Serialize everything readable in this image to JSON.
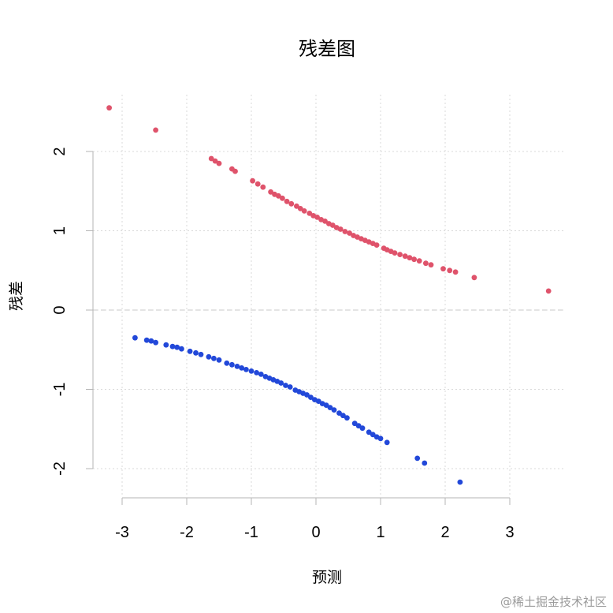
{
  "chart_data": {
    "type": "scatter",
    "title": "残差图",
    "xlabel": "预测",
    "ylabel": "残差",
    "xlim": [
      -3.3,
      3.8
    ],
    "ylim": [
      -2.35,
      2.75
    ],
    "x_ticks": [
      "-3",
      "-2",
      "-1",
      "0",
      "1",
      "2",
      "3"
    ],
    "y_ticks": [
      "-2",
      "-1",
      "0",
      "1",
      "2"
    ],
    "grid": true,
    "reference_line_y": 0,
    "series": [
      {
        "color": "#DF536B",
        "points": [
          [
            -3.2,
            2.55
          ],
          [
            -2.48,
            2.27
          ],
          [
            -1.62,
            1.91
          ],
          [
            -1.56,
            1.88
          ],
          [
            -1.5,
            1.85
          ],
          [
            -1.3,
            1.78
          ],
          [
            -1.25,
            1.75
          ],
          [
            -0.98,
            1.63
          ],
          [
            -0.9,
            1.59
          ],
          [
            -0.82,
            1.55
          ],
          [
            -0.7,
            1.49
          ],
          [
            -0.64,
            1.46
          ],
          [
            -0.58,
            1.44
          ],
          [
            -0.52,
            1.41
          ],
          [
            -0.45,
            1.37
          ],
          [
            -0.38,
            1.34
          ],
          [
            -0.3,
            1.31
          ],
          [
            -0.24,
            1.28
          ],
          [
            -0.18,
            1.25
          ],
          [
            -0.1,
            1.22
          ],
          [
            -0.04,
            1.19
          ],
          [
            0.02,
            1.17
          ],
          [
            0.08,
            1.14
          ],
          [
            0.14,
            1.12
          ],
          [
            0.2,
            1.09
          ],
          [
            0.26,
            1.07
          ],
          [
            0.32,
            1.04
          ],
          [
            0.38,
            1.02
          ],
          [
            0.45,
            0.99
          ],
          [
            0.52,
            0.97
          ],
          [
            0.58,
            0.94
          ],
          [
            0.64,
            0.92
          ],
          [
            0.7,
            0.9
          ],
          [
            0.76,
            0.88
          ],
          [
            0.82,
            0.86
          ],
          [
            0.88,
            0.84
          ],
          [
            0.94,
            0.82
          ],
          [
            1.05,
            0.78
          ],
          [
            1.1,
            0.76
          ],
          [
            1.16,
            0.74
          ],
          [
            1.22,
            0.72
          ],
          [
            1.3,
            0.7
          ],
          [
            1.38,
            0.68
          ],
          [
            1.45,
            0.66
          ],
          [
            1.52,
            0.64
          ],
          [
            1.6,
            0.62
          ],
          [
            1.7,
            0.59
          ],
          [
            1.78,
            0.57
          ],
          [
            1.97,
            0.52
          ],
          [
            2.07,
            0.5
          ],
          [
            2.16,
            0.48
          ],
          [
            2.45,
            0.41
          ],
          [
            3.6,
            0.24
          ]
        ]
      },
      {
        "color": "#2248D9",
        "points": [
          [
            -2.8,
            -0.35
          ],
          [
            -2.62,
            -0.38
          ],
          [
            -2.55,
            -0.39
          ],
          [
            -2.48,
            -0.41
          ],
          [
            -2.32,
            -0.44
          ],
          [
            -2.22,
            -0.46
          ],
          [
            -2.15,
            -0.47
          ],
          [
            -2.08,
            -0.49
          ],
          [
            -1.95,
            -0.52
          ],
          [
            -1.86,
            -0.54
          ],
          [
            -1.78,
            -0.56
          ],
          [
            -1.66,
            -0.59
          ],
          [
            -1.58,
            -0.61
          ],
          [
            -1.5,
            -0.63
          ],
          [
            -1.38,
            -0.67
          ],
          [
            -1.3,
            -0.69
          ],
          [
            -1.22,
            -0.71
          ],
          [
            -1.15,
            -0.73
          ],
          [
            -1.08,
            -0.75
          ],
          [
            -1.0,
            -0.77
          ],
          [
            -0.92,
            -0.79
          ],
          [
            -0.85,
            -0.81
          ],
          [
            -0.78,
            -0.84
          ],
          [
            -0.72,
            -0.86
          ],
          [
            -0.66,
            -0.88
          ],
          [
            -0.6,
            -0.9
          ],
          [
            -0.54,
            -0.92
          ],
          [
            -0.47,
            -0.95
          ],
          [
            -0.4,
            -0.97
          ],
          [
            -0.32,
            -1.01
          ],
          [
            -0.26,
            -1.03
          ],
          [
            -0.2,
            -1.05
          ],
          [
            -0.14,
            -1.07
          ],
          [
            -0.08,
            -1.1
          ],
          [
            -0.02,
            -1.13
          ],
          [
            0.04,
            -1.15
          ],
          [
            0.1,
            -1.18
          ],
          [
            0.16,
            -1.2
          ],
          [
            0.22,
            -1.23
          ],
          [
            0.28,
            -1.26
          ],
          [
            0.36,
            -1.3
          ],
          [
            0.42,
            -1.33
          ],
          [
            0.48,
            -1.36
          ],
          [
            0.6,
            -1.43
          ],
          [
            0.66,
            -1.46
          ],
          [
            0.72,
            -1.49
          ],
          [
            0.82,
            -1.54
          ],
          [
            0.88,
            -1.57
          ],
          [
            0.94,
            -1.6
          ],
          [
            1.0,
            -1.62
          ],
          [
            1.1,
            -1.67
          ],
          [
            1.57,
            -1.87
          ],
          [
            1.68,
            -1.93
          ],
          [
            2.23,
            -2.17
          ]
        ]
      }
    ]
  },
  "watermark": "@稀土掘金技术社区"
}
